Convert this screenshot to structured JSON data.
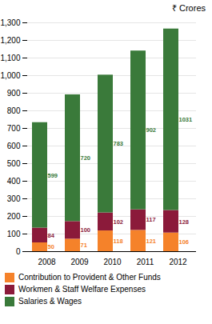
{
  "chart_data": {
    "type": "bar",
    "title": "₹ Crores",
    "categories": [
      "2008",
      "2009",
      "2010",
      "2011",
      "2012"
    ],
    "series": [
      {
        "name": "Contribution to Provident & Other Funds",
        "color": "#f5822a",
        "values": [
          50,
          71,
          118,
          121,
          106
        ]
      },
      {
        "name": "Workmen & Staff Welfare Expenses",
        "color": "#8b1a3a",
        "values": [
          84,
          100,
          102,
          117,
          128
        ]
      },
      {
        "name": "Salaries & Wages",
        "color": "#3a7a3a",
        "values": [
          599,
          720,
          783,
          902,
          1031
        ]
      }
    ],
    "stacked": true,
    "data_labels": true,
    "ylim": [
      0,
      1300
    ],
    "yticks": [
      0,
      100,
      200,
      300,
      400,
      500,
      600,
      700,
      800,
      900,
      1000,
      1100,
      1200,
      1300
    ],
    "grid": true,
    "legend": "bottom"
  }
}
